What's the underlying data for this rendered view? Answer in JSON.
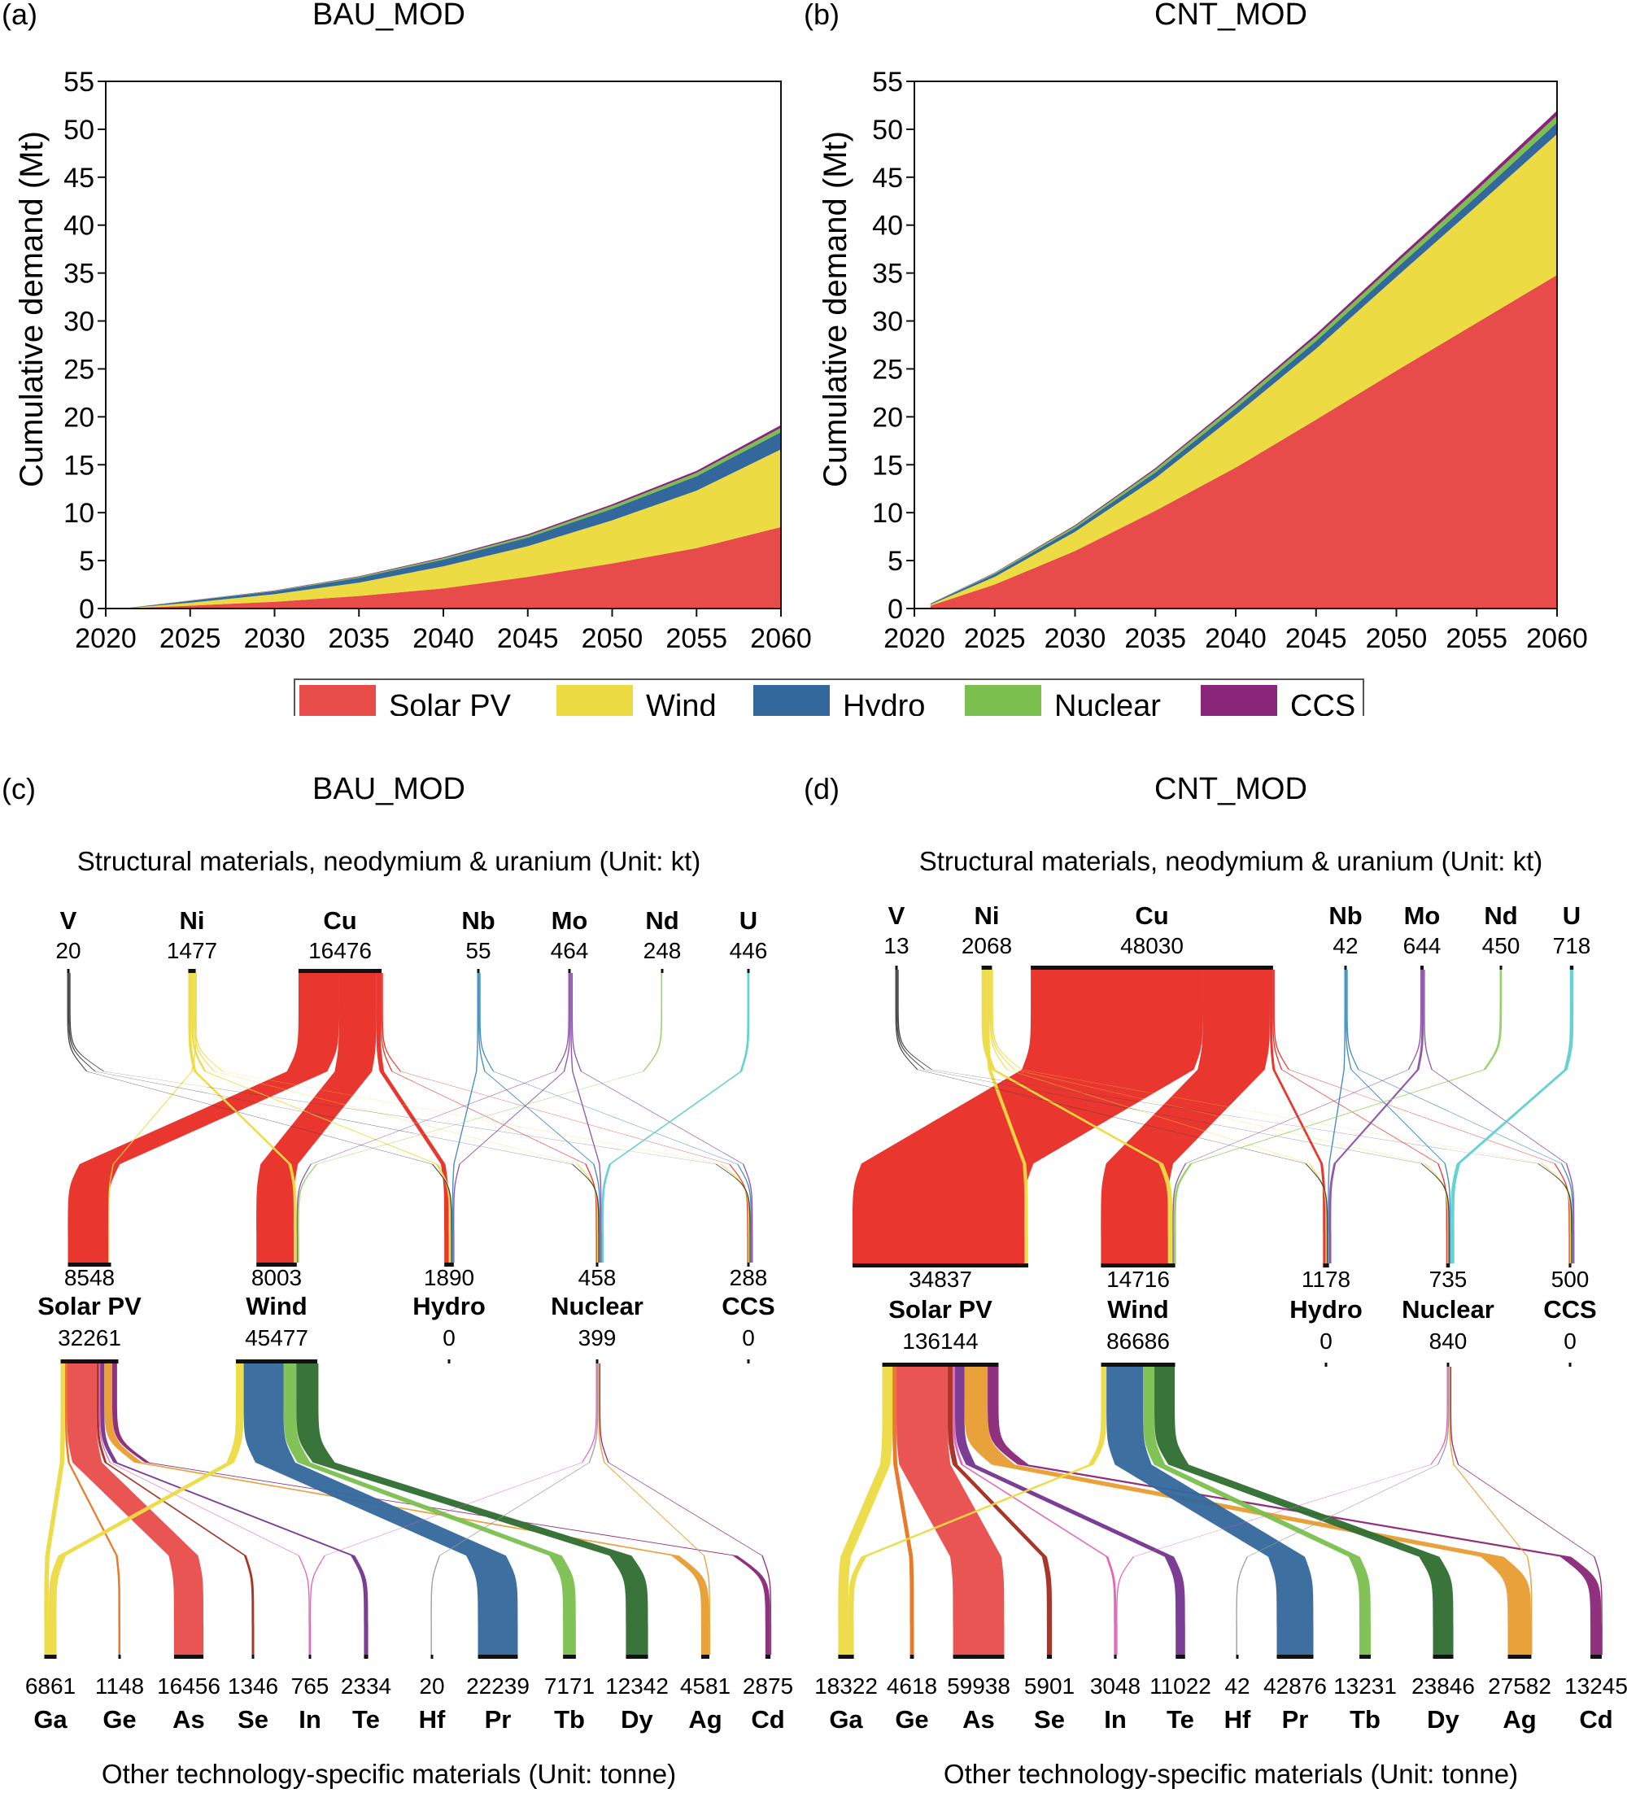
{
  "legend": {
    "items": [
      {
        "label": "Solar PV",
        "color": "#e84c4a"
      },
      {
        "label": "Wind",
        "color": "#ecdb43"
      },
      {
        "label": "Hydro",
        "color": "#33689c"
      },
      {
        "label": "Nuclear",
        "color": "#7bc04f"
      },
      {
        "label": "CCS",
        "color": "#8a2679"
      }
    ]
  },
  "chart_data": [
    {
      "id": "a",
      "panel": "(a)",
      "type": "area",
      "stacked": true,
      "title": "BAU_MOD",
      "xlabel": "",
      "ylabel": "Cumulative demand (Mt)",
      "xlim": [
        2020,
        2060
      ],
      "ylim": [
        0,
        55
      ],
      "xticks": [
        2020,
        2025,
        2030,
        2035,
        2040,
        2045,
        2050,
        2055,
        2060
      ],
      "yticks": [
        0,
        5,
        10,
        15,
        20,
        25,
        30,
        35,
        40,
        45,
        50,
        55
      ],
      "grid": false,
      "x": [
        2021,
        2025,
        2030,
        2035,
        2040,
        2045,
        2050,
        2055,
        2060
      ],
      "series": [
        {
          "name": "Solar PV",
          "values": [
            0.0,
            0.3,
            0.7,
            1.3,
            2.1,
            3.3,
            4.7,
            6.3,
            8.5
          ]
        },
        {
          "name": "Wind",
          "values": [
            0.0,
            0.3,
            0.8,
            1.4,
            2.3,
            3.2,
            4.5,
            6.0,
            8.1
          ]
        },
        {
          "name": "Hydro",
          "values": [
            0.0,
            0.2,
            0.3,
            0.5,
            0.7,
            0.9,
            1.2,
            1.5,
            1.8
          ]
        },
        {
          "name": "Nuclear",
          "values": [
            0.0,
            0.03,
            0.05,
            0.1,
            0.15,
            0.2,
            0.3,
            0.35,
            0.45
          ]
        },
        {
          "name": "CCS",
          "values": [
            0.0,
            0.02,
            0.04,
            0.06,
            0.1,
            0.14,
            0.18,
            0.22,
            0.29
          ]
        }
      ]
    },
    {
      "id": "b",
      "panel": "(b)",
      "type": "area",
      "stacked": true,
      "title": "CNT_MOD",
      "xlabel": "",
      "ylabel": "Cumulative demand (Mt)",
      "xlim": [
        2020,
        2060
      ],
      "ylim": [
        0,
        55
      ],
      "xticks": [
        2020,
        2025,
        2030,
        2035,
        2040,
        2045,
        2050,
        2055,
        2060
      ],
      "yticks": [
        0,
        5,
        10,
        15,
        20,
        25,
        30,
        35,
        40,
        45,
        50,
        55
      ],
      "grid": false,
      "x": [
        2021,
        2025,
        2030,
        2035,
        2040,
        2045,
        2050,
        2055,
        2060
      ],
      "series": [
        {
          "name": "Solar PV",
          "values": [
            0.3,
            2.5,
            6.0,
            10.2,
            14.7,
            19.7,
            24.8,
            29.8,
            34.8
          ]
        },
        {
          "name": "Wind",
          "values": [
            0.1,
            0.8,
            2.0,
            3.4,
            5.5,
            7.4,
            9.8,
            12.2,
            14.7
          ]
        },
        {
          "name": "Hydro",
          "values": [
            0.1,
            0.3,
            0.4,
            0.6,
            0.7,
            0.8,
            0.9,
            1.0,
            1.2
          ]
        },
        {
          "name": "Nuclear",
          "values": [
            0.02,
            0.1,
            0.2,
            0.3,
            0.4,
            0.45,
            0.55,
            0.65,
            0.74
          ]
        },
        {
          "name": "CCS",
          "values": [
            0.01,
            0.05,
            0.1,
            0.15,
            0.2,
            0.28,
            0.35,
            0.42,
            0.5
          ]
        }
      ]
    }
  ],
  "sankeys": [
    {
      "id": "c",
      "panel": "(c)",
      "title": "BAU_MOD",
      "top_subtitle": "Structural materials, neodymium & uranium (Unit: kt)",
      "bottom_subtitle": "Other technology-specific materials (Unit: tonne)",
      "structural": [
        {
          "name": "V",
          "value": "20",
          "color": "#3a3a3a"
        },
        {
          "name": "Ni",
          "value": "1477",
          "color": "#ecdb43"
        },
        {
          "name": "Cu",
          "value": "16476",
          "color": "#e82c24"
        },
        {
          "name": "Nb",
          "value": "55",
          "color": "#3c88bb"
        },
        {
          "name": "Mo",
          "value": "464",
          "color": "#8a4fa8"
        },
        {
          "name": "Nd",
          "value": "248",
          "color": "#8fd060"
        },
        {
          "name": "U",
          "value": "446",
          "color": "#5fd0d0"
        }
      ],
      "technologies": [
        {
          "name": "Solar PV",
          "structural_total": "8548",
          "specific_total": "32261"
        },
        {
          "name": "Wind",
          "structural_total": "8003",
          "specific_total": "45477"
        },
        {
          "name": "Hydro",
          "structural_total": "1890",
          "specific_total": "0"
        },
        {
          "name": "Nuclear",
          "structural_total": "458",
          "specific_total": "399"
        },
        {
          "name": "CCS",
          "structural_total": "288",
          "specific_total": "0"
        }
      ],
      "specific": [
        {
          "name": "Ga",
          "value": "6861",
          "color": "#ecdb43"
        },
        {
          "name": "Ge",
          "value": "1148",
          "color": "#e8731f"
        },
        {
          "name": "As",
          "value": "16456",
          "color": "#e84c4a"
        },
        {
          "name": "Se",
          "value": "1346",
          "color": "#a52a1e"
        },
        {
          "name": "In",
          "value": "765",
          "color": "#e35db8"
        },
        {
          "name": "Te",
          "value": "2334",
          "color": "#74348e"
        },
        {
          "name": "Hf",
          "value": "20",
          "color": "#9a9a9a"
        },
        {
          "name": "Pr",
          "value": "22239",
          "color": "#33689c"
        },
        {
          "name": "Tb",
          "value": "7171",
          "color": "#7bc04f"
        },
        {
          "name": "Dy",
          "value": "12342",
          "color": "#2e6e30"
        },
        {
          "name": "Ag",
          "value": "4581",
          "color": "#e89c30"
        },
        {
          "name": "Cd",
          "value": "2875",
          "color": "#8a2679"
        }
      ],
      "structural_flows": [
        [
          "Cu",
          "Solar PV",
          8000
        ],
        [
          "Cu",
          "Wind",
          7400
        ],
        [
          "Cu",
          "Hydro",
          900
        ],
        [
          "Cu",
          "Nuclear",
          110
        ],
        [
          "Cu",
          "CCS",
          66
        ],
        [
          "Ni",
          "Wind",
          600
        ],
        [
          "Ni",
          "Hydro",
          420
        ],
        [
          "Ni",
          "Nuclear",
          150
        ],
        [
          "Ni",
          "CCS",
          110
        ],
        [
          "Ni",
          "Solar PV",
          197
        ],
        [
          "V",
          "Hydro",
          6
        ],
        [
          "V",
          "Nuclear",
          6
        ],
        [
          "V",
          "CCS",
          8
        ],
        [
          "Nb",
          "Hydro",
          20
        ],
        [
          "Nb",
          "Nuclear",
          20
        ],
        [
          "Nb",
          "CCS",
          15
        ],
        [
          "Mo",
          "Wind",
          3
        ],
        [
          "Mo",
          "Hydro",
          160
        ],
        [
          "Mo",
          "Nuclear",
          170
        ],
        [
          "Mo",
          "CCS",
          131
        ],
        [
          "Nd",
          "Wind",
          248
        ],
        [
          "U",
          "Nuclear",
          446
        ]
      ],
      "specific_flows": [
        [
          "Solar PV",
          "Ga",
          2500
        ],
        [
          "Solar PV",
          "Ge",
          1148
        ],
        [
          "Solar PV",
          "As",
          16456
        ],
        [
          "Solar PV",
          "Se",
          1346
        ],
        [
          "Solar PV",
          "In",
          600
        ],
        [
          "Solar PV",
          "Te",
          2334
        ],
        [
          "Solar PV",
          "Ag",
          4400
        ],
        [
          "Solar PV",
          "Cd",
          2700
        ],
        [
          "Wind",
          "Ga",
          4361
        ],
        [
          "Wind",
          "Pr",
          22239
        ],
        [
          "Wind",
          "Tb",
          7171
        ],
        [
          "Wind",
          "Dy",
          12342
        ],
        [
          "Nuclear",
          "In",
          165
        ],
        [
          "Nuclear",
          "Hf",
          20
        ],
        [
          "Nuclear",
          "Ag",
          181
        ],
        [
          "Nuclear",
          "Cd",
          175
        ]
      ]
    },
    {
      "id": "d",
      "panel": "(d)",
      "title": "CNT_MOD",
      "top_subtitle": "Structural materials, neodymium & uranium (Unit: kt)",
      "bottom_subtitle": "Other technology-specific materials (Unit: tonne)",
      "structural": [
        {
          "name": "V",
          "value": "13",
          "color": "#3a3a3a"
        },
        {
          "name": "Ni",
          "value": "2068",
          "color": "#ecdb43"
        },
        {
          "name": "Cu",
          "value": "48030",
          "color": "#e82c24"
        },
        {
          "name": "Nb",
          "value": "42",
          "color": "#3c88bb"
        },
        {
          "name": "Mo",
          "value": "644",
          "color": "#8a4fa8"
        },
        {
          "name": "Nd",
          "value": "450",
          "color": "#8fd060"
        },
        {
          "name": "U",
          "value": "718",
          "color": "#5fd0d0"
        }
      ],
      "technologies": [
        {
          "name": "Solar PV",
          "structural_total": "34837",
          "specific_total": "136144"
        },
        {
          "name": "Wind",
          "structural_total": "14716",
          "specific_total": "86686"
        },
        {
          "name": "Hydro",
          "structural_total": "1178",
          "specific_total": "0"
        },
        {
          "name": "Nuclear",
          "structural_total": "735",
          "specific_total": "840"
        },
        {
          "name": "CCS",
          "structural_total": "500",
          "specific_total": "0"
        }
      ],
      "specific": [
        {
          "name": "Ga",
          "value": "18322",
          "color": "#ecdb43"
        },
        {
          "name": "Ge",
          "value": "4618",
          "color": "#e8731f"
        },
        {
          "name": "As",
          "value": "59938",
          "color": "#e84c4a"
        },
        {
          "name": "Se",
          "value": "5901",
          "color": "#a52a1e"
        },
        {
          "name": "In",
          "value": "3048",
          "color": "#e35db8"
        },
        {
          "name": "Te",
          "value": "11022",
          "color": "#74348e"
        },
        {
          "name": "Hf",
          "value": "42",
          "color": "#9a9a9a"
        },
        {
          "name": "Pr",
          "value": "42876",
          "color": "#33689c"
        },
        {
          "name": "Tb",
          "value": "13231",
          "color": "#7bc04f"
        },
        {
          "name": "Dy",
          "value": "23846",
          "color": "#2e6e30"
        },
        {
          "name": "Ag",
          "value": "27582",
          "color": "#e89c30"
        },
        {
          "name": "Cd",
          "value": "13245",
          "color": "#8a2679"
        }
      ],
      "structural_flows": [
        [
          "Cu",
          "Solar PV",
          34100
        ],
        [
          "Cu",
          "Wind",
          13300
        ],
        [
          "Cu",
          "Hydro",
          500
        ],
        [
          "Cu",
          "Nuclear",
          80
        ],
        [
          "Cu",
          "CCS",
          50
        ],
        [
          "Ni",
          "Wind",
          900
        ],
        [
          "Ni",
          "Solar PV",
          700
        ],
        [
          "Ni",
          "Hydro",
          200
        ],
        [
          "Ni",
          "Nuclear",
          150
        ],
        [
          "Ni",
          "CCS",
          118
        ],
        [
          "V",
          "Hydro",
          4
        ],
        [
          "V",
          "Nuclear",
          4
        ],
        [
          "V",
          "CCS",
          5
        ],
        [
          "Nb",
          "Hydro",
          15
        ],
        [
          "Nb",
          "Nuclear",
          15
        ],
        [
          "Nb",
          "CCS",
          12
        ],
        [
          "Mo",
          "Wind",
          66
        ],
        [
          "Mo",
          "Hydro",
          459
        ],
        [
          "Mo",
          "Nuclear",
          0
        ],
        [
          "Mo",
          "CCS",
          119
        ],
        [
          "Nd",
          "Wind",
          450
        ],
        [
          "U",
          "Nuclear",
          718
        ]
      ],
      "specific_flows": [
        [
          "Solar PV",
          "Ga",
          12000
        ],
        [
          "Solar PV",
          "Ge",
          4618
        ],
        [
          "Solar PV",
          "As",
          59938
        ],
        [
          "Solar PV",
          "Se",
          5901
        ],
        [
          "Solar PV",
          "In",
          2700
        ],
        [
          "Solar PV",
          "Te",
          11022
        ],
        [
          "Solar PV",
          "Ag",
          27200
        ],
        [
          "Solar PV",
          "Cd",
          12765
        ],
        [
          "Wind",
          "Ga",
          6322
        ],
        [
          "Wind",
          "Pr",
          42876
        ],
        [
          "Wind",
          "Tb",
          13231
        ],
        [
          "Wind",
          "Dy",
          23846
        ],
        [
          "Nuclear",
          "In",
          348
        ],
        [
          "Nuclear",
          "Hf",
          42
        ],
        [
          "Nuclear",
          "Ag",
          382
        ],
        [
          "Nuclear",
          "Cd",
          480
        ]
      ]
    }
  ]
}
